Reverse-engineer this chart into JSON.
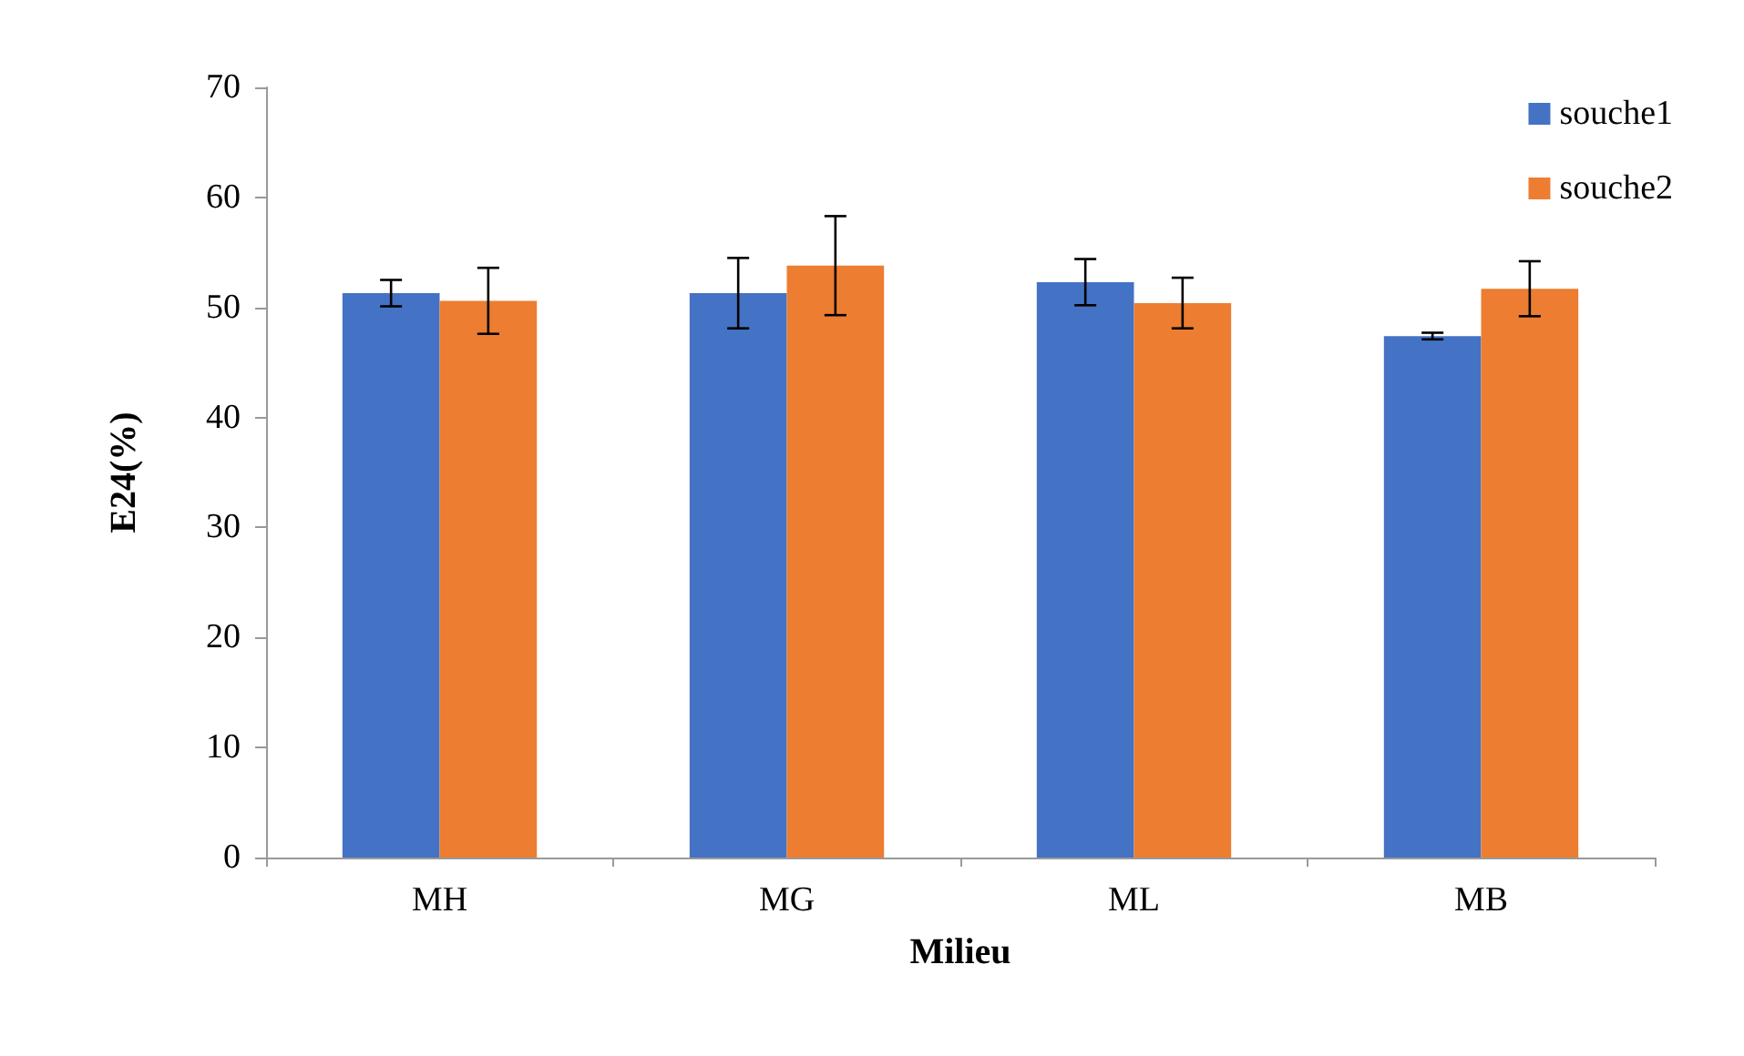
{
  "chart_data": {
    "type": "bar",
    "xlabel": "Milieu",
    "ylabel": "E24(%)",
    "categories": [
      "MH",
      "MG",
      "ML",
      "MB"
    ],
    "series": [
      {
        "name": "souche1",
        "color": "#4472c4",
        "values": [
          51.3,
          51.3,
          52.3,
          47.4
        ],
        "errors": [
          1.2,
          3.2,
          2.1,
          0.3
        ]
      },
      {
        "name": "souche2",
        "color": "#ed7d31",
        "values": [
          50.6,
          53.8,
          50.4,
          51.7
        ],
        "errors": [
          3,
          4.5,
          2.3,
          2.5
        ]
      }
    ],
    "ylim": [
      0,
      70
    ],
    "yticks": [
      0,
      10,
      20,
      30,
      40,
      50,
      60,
      70
    ],
    "grid": false,
    "legend": "top right"
  }
}
